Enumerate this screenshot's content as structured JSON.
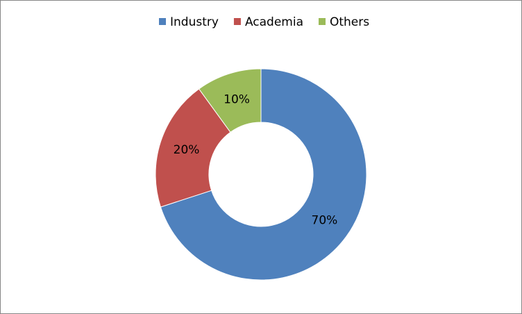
{
  "chart_data": {
    "type": "donut",
    "categories": [
      "Industry",
      "Academia",
      "Others"
    ],
    "values": [
      70,
      20,
      10
    ],
    "value_labels": [
      "70%",
      "20%",
      "10%"
    ],
    "colors": [
      "#4f81bd",
      "#c0504d",
      "#9bbb59"
    ],
    "legend": "top"
  }
}
